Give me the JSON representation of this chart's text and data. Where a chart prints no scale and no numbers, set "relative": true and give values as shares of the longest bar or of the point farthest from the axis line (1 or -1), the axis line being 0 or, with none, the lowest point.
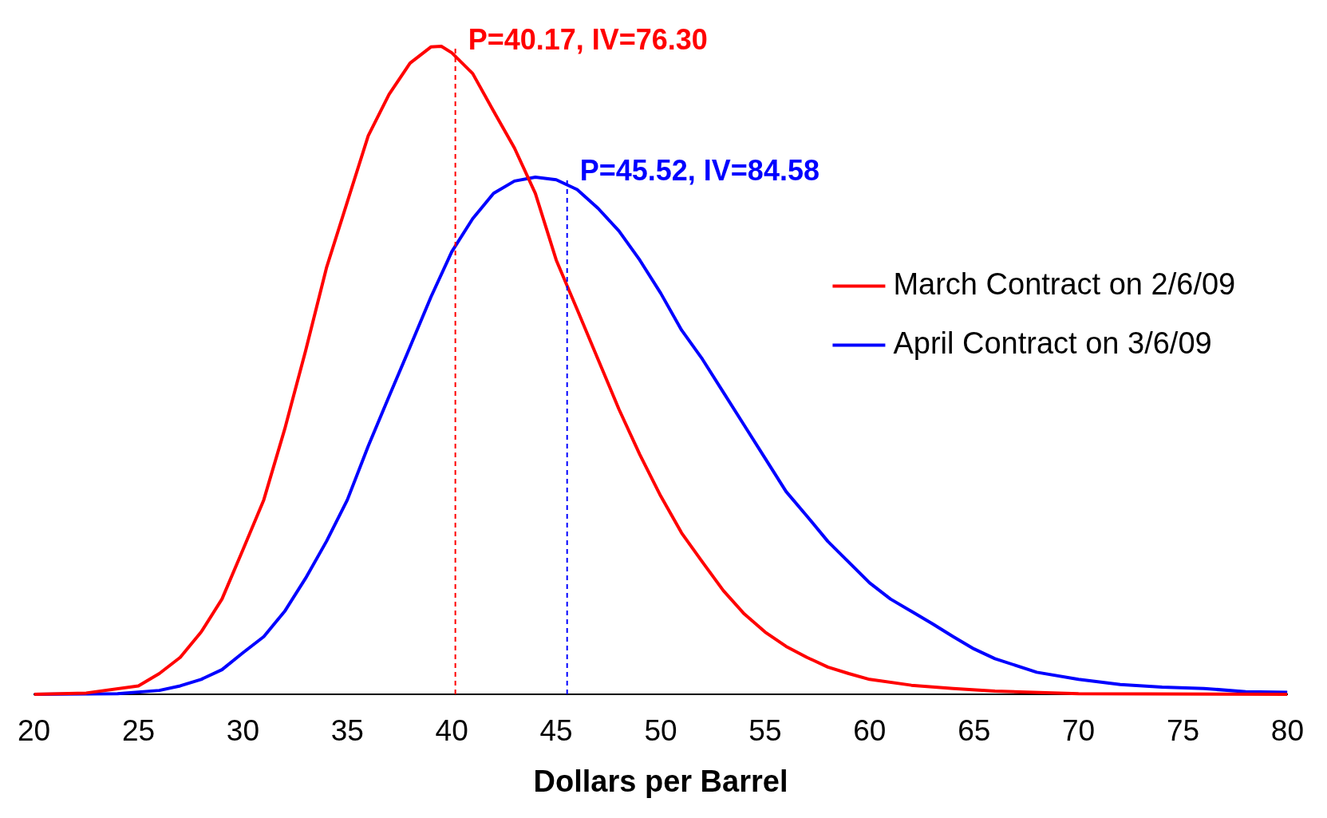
{
  "chart_data": {
    "type": "line",
    "relative": true,
    "xlabel": "Dollars per Barrel",
    "xlim": [
      20,
      80
    ],
    "xticks": [
      20,
      25,
      30,
      35,
      40,
      45,
      50,
      55,
      60,
      65,
      70,
      75,
      80
    ],
    "grid": false,
    "legend": "right",
    "marker": "none",
    "line_style": "solid",
    "series": [
      {
        "name": "March Contract on 2/6/09",
        "color": "#ff0000",
        "x": [
          20,
          22.5,
          25,
          26,
          27,
          28,
          29,
          30,
          31,
          32,
          33,
          34,
          35,
          36,
          37,
          38,
          39,
          39.5,
          40,
          41,
          42,
          43,
          44,
          45,
          46,
          47,
          48,
          49,
          50,
          51,
          52,
          53,
          54,
          55,
          56,
          57,
          58,
          59,
          60,
          62,
          64,
          66,
          70,
          80
        ],
        "values": [
          0,
          0.002,
          0.013,
          0.032,
          0.057,
          0.096,
          0.147,
          0.223,
          0.3,
          0.409,
          0.53,
          0.658,
          0.76,
          0.862,
          0.926,
          0.974,
          0.999,
          1,
          0.99,
          0.958,
          0.9,
          0.843,
          0.773,
          0.67,
          0.594,
          0.517,
          0.44,
          0.37,
          0.306,
          0.249,
          0.204,
          0.16,
          0.124,
          0.096,
          0.074,
          0.057,
          0.042,
          0.032,
          0.023,
          0.014,
          0.009,
          0.005,
          0.001,
          0
        ]
      },
      {
        "name": "April Contract on 3/6/09",
        "color": "#0000ff",
        "x": [
          20,
          24,
          26,
          27,
          28,
          29,
          30,
          31,
          32,
          33,
          34,
          35,
          36,
          37,
          38,
          39,
          40,
          41,
          42,
          43,
          44,
          45,
          46,
          47,
          48,
          49,
          50,
          51,
          52,
          53,
          54,
          55,
          56,
          57,
          58,
          59,
          60,
          61,
          62,
          63,
          64,
          65,
          66,
          68,
          70,
          72,
          74,
          76,
          78,
          80
        ],
        "values": [
          0,
          0.001,
          0.006,
          0.013,
          0.023,
          0.038,
          0.064,
          0.089,
          0.128,
          0.179,
          0.236,
          0.3,
          0.383,
          0.46,
          0.536,
          0.613,
          0.683,
          0.734,
          0.773,
          0.792,
          0.798,
          0.794,
          0.779,
          0.75,
          0.715,
          0.67,
          0.619,
          0.562,
          0.517,
          0.466,
          0.415,
          0.364,
          0.313,
          0.275,
          0.236,
          0.204,
          0.172,
          0.147,
          0.128,
          0.109,
          0.089,
          0.07,
          0.055,
          0.034,
          0.023,
          0.015,
          0.011,
          0.009,
          0.004,
          0.003
        ]
      }
    ],
    "ref_lines": [
      {
        "axis": "x",
        "value": 40.17,
        "label": "P=40.17, IV=76.30",
        "color": "#ff0000",
        "line_style": "dashed"
      },
      {
        "axis": "x",
        "value": 45.52,
        "label": "P=45.52, IV=84.58",
        "color": "#0000ff",
        "line_style": "dashed"
      }
    ]
  }
}
